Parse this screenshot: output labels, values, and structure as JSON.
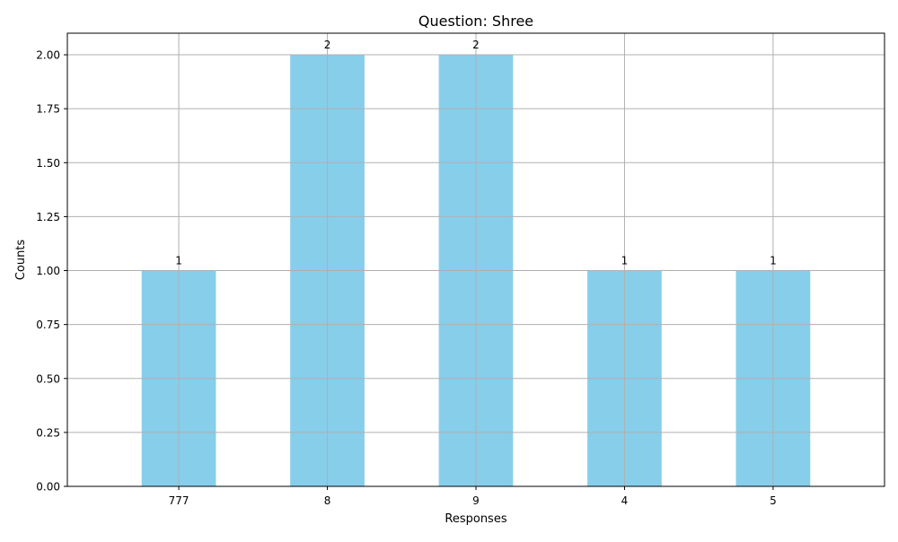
{
  "chart_data": {
    "type": "bar",
    "title": "Question: Shree",
    "xlabel": "Responses",
    "ylabel": "Counts",
    "categories": [
      "777",
      "8",
      "9",
      "4",
      "5"
    ],
    "values": [
      1,
      2,
      2,
      1,
      1
    ],
    "data_labels": [
      "1",
      "2",
      "2",
      "1",
      "1"
    ],
    "ylim": [
      0,
      2.1
    ],
    "yticks": [
      0,
      0.25,
      0.5,
      0.75,
      1.0,
      1.25,
      1.5,
      1.75,
      2.0
    ],
    "ytick_labels": [
      "0.00",
      "0.25",
      "0.50",
      "0.75",
      "1.00",
      "1.25",
      "1.50",
      "1.75",
      "2.00"
    ],
    "grid": true,
    "bar_color": "#87ceeb",
    "grid_color": "#b0b0b0"
  }
}
